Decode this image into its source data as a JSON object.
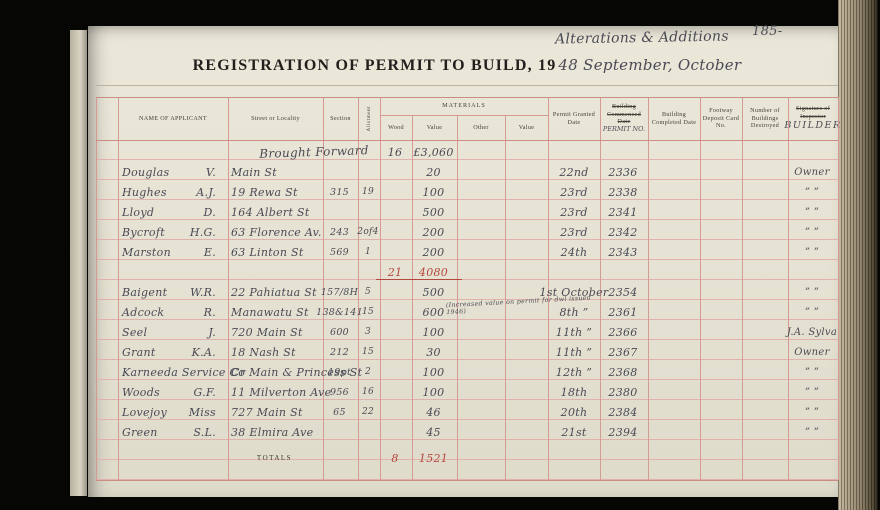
{
  "page": {
    "annotation": "Alterations & Additions",
    "page_number": "185-",
    "title_printed": "REGISTRATION OF PERMIT TO BUILD, 19",
    "title_handwritten": "48 September, October"
  },
  "ink_colors": {
    "handwriting": "#4a4a55",
    "red_ink": "#b5483e",
    "rule_pink": "#d49a93"
  },
  "table": {
    "headers": {
      "name": "NAME OF APPLICANT",
      "street": "Street or Locality",
      "section": "Section",
      "allotment": "Allotment",
      "materials": "MATERIALS",
      "wood": "Wood",
      "value1": "Value",
      "other": "Other",
      "value2": "Value",
      "permit_granted": "Permit Granted Date",
      "building_commenced": "Building Commenced Date",
      "permit_no_hand": "PERMIT NO.",
      "building_completed": "Building Completed Date",
      "footway": "Footway Deposit Card No.",
      "destroyed": "Number of Buildings Destroyed",
      "inspector": "Signature of Inspector",
      "builder_hand": "BUILDER"
    },
    "rows": [
      {
        "kind": "brought",
        "text": "Brought Forward",
        "wood": "16",
        "value": "£3,060"
      },
      {
        "kind": "entry",
        "surname": "Douglas",
        "initials": "V.",
        "street": "Main St",
        "section": "",
        "allotment": "",
        "value": "20",
        "date": "22nd",
        "permit": "2336",
        "builder": "Owner"
      },
      {
        "kind": "entry",
        "surname": "Hughes",
        "initials": "A.J.",
        "street": "19 Rewa St",
        "section": "315",
        "allotment": "19",
        "value": "100",
        "date": "23rd",
        "permit": "2338",
        "builder": "” ”"
      },
      {
        "kind": "entry",
        "surname": "Lloyd",
        "initials": "D.",
        "street": "164 Albert St",
        "section": "",
        "allotment": "",
        "value": "500",
        "date": "23rd",
        "permit": "2341",
        "builder": "” ”"
      },
      {
        "kind": "entry",
        "surname": "Bycroft",
        "initials": "H.G.",
        "street": "63 Florence Av.",
        "section": "243",
        "allotment": "2of4",
        "value": "200",
        "date": "23rd",
        "permit": "2342",
        "builder": "” ”"
      },
      {
        "kind": "entry",
        "surname": "Marston",
        "initials": "E.",
        "street": "63 Linton St",
        "section": "569",
        "allotment": "1",
        "value": "200",
        "date": "24th",
        "permit": "2343",
        "builder": "” ”"
      },
      {
        "kind": "subtotal",
        "wood": "21",
        "value": "4080"
      },
      {
        "kind": "entry",
        "surname": "Baigent",
        "initials": "W.R.",
        "street": "22 Pahiatua St",
        "section": "157/8H",
        "allotment": "5",
        "value": "500",
        "date": "1st October",
        "permit": "2354",
        "builder": "” ”"
      },
      {
        "kind": "entry",
        "surname": "Adcock",
        "initials": "R.",
        "street": "Manawatu St",
        "section": "138&141",
        "allotment": "15",
        "value": "600",
        "note": "(Increased value on permit for dwl issued 1946)",
        "date": "8th ”",
        "permit": "2361",
        "builder": "” ”"
      },
      {
        "kind": "entry",
        "surname": "Seel",
        "initials": "J.",
        "street": "720 Main St",
        "section": "600",
        "allotment": "3",
        "value": "100",
        "date": "11th ”",
        "permit": "2366",
        "builder": "J.A. Sylva"
      },
      {
        "kind": "entry",
        "surname": "Grant",
        "initials": "K.A.",
        "street": "18 Nash St",
        "section": "212",
        "allotment": "15",
        "value": "30",
        "date": "11th ”",
        "permit": "2367",
        "builder": "Owner"
      },
      {
        "kind": "entry",
        "surname": "Karneeda Service Co",
        "initials": "",
        "street": "Cr Main & Princess St",
        "section": "19pt",
        "allotment": "2",
        "value": "100",
        "date": "12th ”",
        "permit": "2368",
        "builder": "” ”"
      },
      {
        "kind": "entry",
        "surname": "Woods",
        "initials": "G.F.",
        "street": "11 Milverton Ave",
        "section": "956",
        "allotment": "16",
        "value": "100",
        "date": "18th",
        "permit": "2380",
        "builder": "” ”"
      },
      {
        "kind": "entry",
        "surname": "Lovejoy",
        "initials": "Miss",
        "street": "727 Main St",
        "section": "65",
        "allotment": "22",
        "value": "46",
        "date": "20th",
        "permit": "2384",
        "builder": "” ”"
      },
      {
        "kind": "entry",
        "surname": "Green",
        "initials": "S.L.",
        "street": "38 Elmira Ave",
        "section": "",
        "allotment": "",
        "value": "45",
        "date": "21st",
        "permit": "2394",
        "builder": "” ”"
      },
      {
        "kind": "blank"
      },
      {
        "kind": "totals",
        "label": "TOTALS",
        "wood": "8",
        "value": "1521"
      }
    ]
  }
}
